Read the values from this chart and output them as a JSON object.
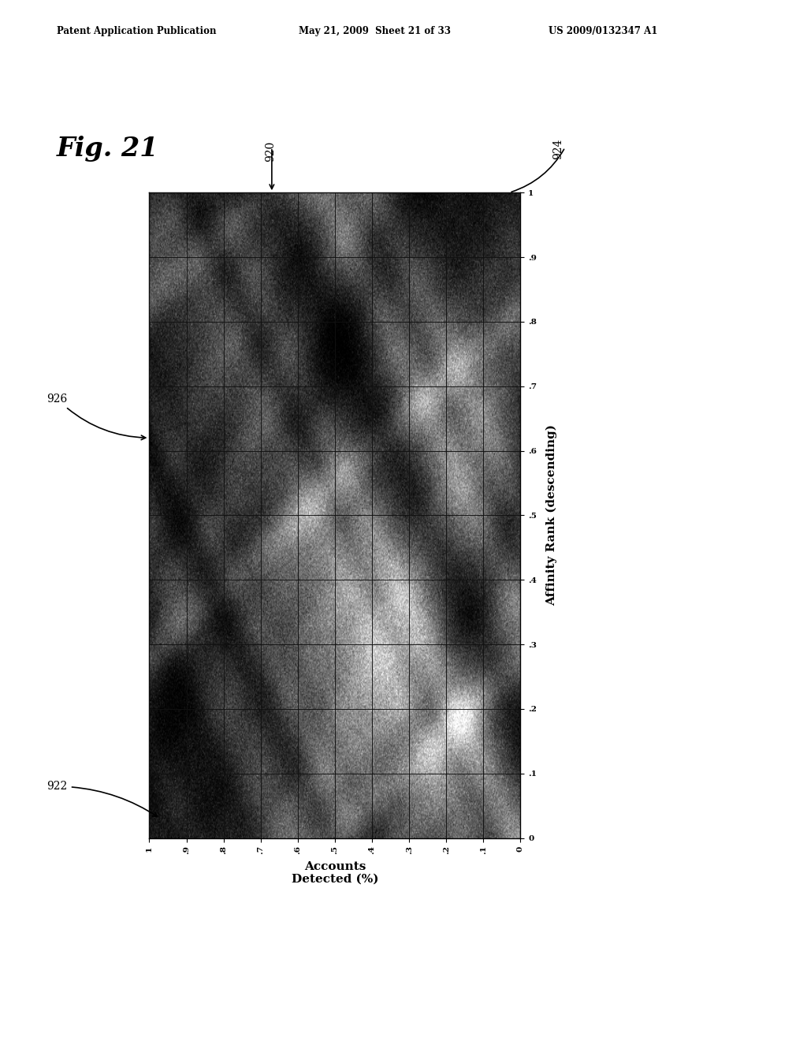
{
  "fig_label": "Fig. 21",
  "header_left": "Patent Application Publication",
  "header_center": "May 21, 2009  Sheet 21 of 33",
  "header_right": "US 2009/0132347 A1",
  "label_920": "920",
  "label_922": "922",
  "label_924": "924",
  "label_926": "926",
  "xlabel_line1": "Accounts",
  "xlabel_line2": "Detected (%)",
  "ylabel": "Affinity Rank (descending)",
  "x_ticks": [
    "1",
    ".9",
    ".8",
    ".7",
    ".6",
    ".5",
    ".4",
    ".3",
    ".2",
    ".1",
    "0"
  ],
  "y_ticks": [
    "1",
    ".9",
    ".8",
    ".7",
    ".6",
    ".5",
    ".4",
    ".3",
    ".2",
    ".1",
    "0"
  ],
  "background_color": "#ffffff"
}
